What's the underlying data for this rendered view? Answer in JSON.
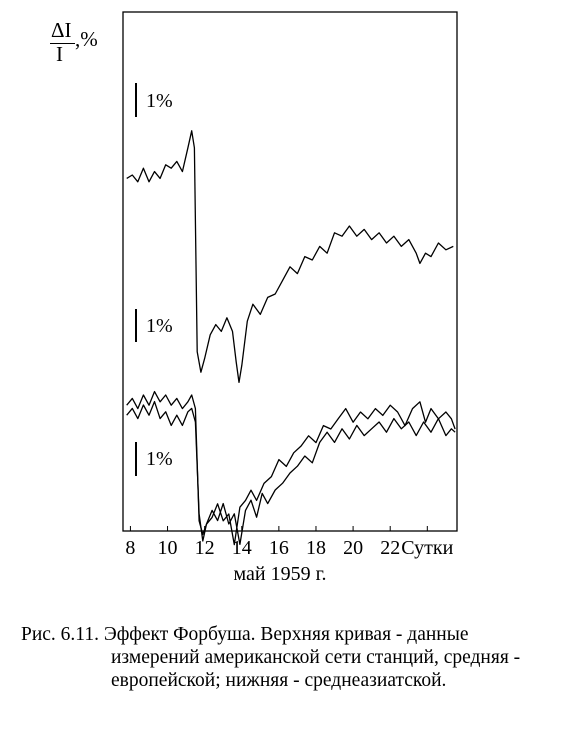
{
  "y_label": {
    "numerator": "ΔI",
    "denominator": "I",
    "unit": ",%"
  },
  "scale_bars": [
    {
      "label": "1%"
    },
    {
      "label": "1%"
    },
    {
      "label": "1%"
    }
  ],
  "x_axis_title": "май 1959 г.",
  "caption": {
    "line1": "Рис. 6.11. Эффект Форбуша. Верхняя кривая - данные",
    "line2": "измерений американской сети станций, средняя -",
    "line3": "европейской; нижняя - среднеазиатской."
  },
  "chart_data": {
    "type": "line",
    "x_unit": "сутки (май 1959 г.)",
    "xlim": [
      7.6,
      25.6
    ],
    "x_ticks": [
      {
        "value": 8,
        "label": "8"
      },
      {
        "value": 10,
        "label": "10"
      },
      {
        "value": 12,
        "label": "12"
      },
      {
        "value": 14,
        "label": "14"
      },
      {
        "value": 16,
        "label": "16"
      },
      {
        "value": 18,
        "label": "18"
      },
      {
        "value": 20,
        "label": "20"
      },
      {
        "value": 22,
        "label": "22"
      },
      {
        "value": 24,
        "label": "Сутки"
      }
    ],
    "series": [
      {
        "points": [
          [
            7.8,
            2.4
          ],
          [
            8.1,
            2.5
          ],
          [
            8.4,
            2.3
          ],
          [
            8.7,
            2.7
          ],
          [
            9.0,
            2.3
          ],
          [
            9.3,
            2.6
          ],
          [
            9.6,
            2.4
          ],
          [
            9.9,
            2.8
          ],
          [
            10.2,
            2.7
          ],
          [
            10.5,
            2.9
          ],
          [
            10.8,
            2.6
          ],
          [
            11.1,
            3.3
          ],
          [
            11.3,
            3.8
          ],
          [
            11.45,
            3.3
          ],
          [
            11.6,
            -2.7
          ],
          [
            11.8,
            -3.3
          ],
          [
            12.0,
            -2.9
          ],
          [
            12.3,
            -2.2
          ],
          [
            12.6,
            -1.9
          ],
          [
            12.9,
            -2.1
          ],
          [
            13.2,
            -1.7
          ],
          [
            13.5,
            -2.1
          ],
          [
            13.7,
            -3.0
          ],
          [
            13.85,
            -3.6
          ],
          [
            14.0,
            -3.1
          ],
          [
            14.3,
            -1.8
          ],
          [
            14.6,
            -1.3
          ],
          [
            15.0,
            -1.6
          ],
          [
            15.4,
            -1.1
          ],
          [
            15.8,
            -1.0
          ],
          [
            16.2,
            -0.6
          ],
          [
            16.6,
            -0.2
          ],
          [
            17.0,
            -0.4
          ],
          [
            17.4,
            0.1
          ],
          [
            17.8,
            0.0
          ],
          [
            18.2,
            0.4
          ],
          [
            18.6,
            0.2
          ],
          [
            19.0,
            0.8
          ],
          [
            19.4,
            0.7
          ],
          [
            19.8,
            1.0
          ],
          [
            20.2,
            0.7
          ],
          [
            20.6,
            0.9
          ],
          [
            21.0,
            0.6
          ],
          [
            21.4,
            0.8
          ],
          [
            21.8,
            0.5
          ],
          [
            22.2,
            0.7
          ],
          [
            22.6,
            0.4
          ],
          [
            23.0,
            0.6
          ],
          [
            23.4,
            0.2
          ],
          [
            23.6,
            -0.1
          ],
          [
            23.9,
            0.2
          ],
          [
            24.2,
            0.1
          ],
          [
            24.6,
            0.5
          ],
          [
            25.0,
            0.3
          ],
          [
            25.4,
            0.4
          ]
        ]
      },
      {
        "points": [
          [
            7.8,
            0.2
          ],
          [
            8.1,
            0.4
          ],
          [
            8.4,
            0.1
          ],
          [
            8.7,
            0.5
          ],
          [
            9.0,
            0.2
          ],
          [
            9.3,
            0.6
          ],
          [
            9.6,
            0.3
          ],
          [
            9.9,
            0.5
          ],
          [
            10.2,
            0.2
          ],
          [
            10.5,
            0.4
          ],
          [
            10.8,
            0.1
          ],
          [
            11.1,
            0.3
          ],
          [
            11.3,
            0.5
          ],
          [
            11.5,
            0.1
          ],
          [
            11.7,
            -3.2
          ],
          [
            11.9,
            -3.6
          ],
          [
            12.1,
            -3.3
          ],
          [
            12.4,
            -3.1
          ],
          [
            12.7,
            -2.7
          ],
          [
            13.0,
            -3.2
          ],
          [
            13.3,
            -3.0
          ],
          [
            13.6,
            -3.9
          ],
          [
            13.9,
            -2.8
          ],
          [
            14.2,
            -2.6
          ],
          [
            14.5,
            -2.3
          ],
          [
            14.8,
            -2.6
          ],
          [
            15.2,
            -2.1
          ],
          [
            15.6,
            -1.9
          ],
          [
            16.0,
            -1.4
          ],
          [
            16.4,
            -1.6
          ],
          [
            16.8,
            -1.2
          ],
          [
            17.2,
            -1.0
          ],
          [
            17.6,
            -0.7
          ],
          [
            18.0,
            -0.9
          ],
          [
            18.4,
            -0.4
          ],
          [
            18.8,
            -0.5
          ],
          [
            19.2,
            -0.2
          ],
          [
            19.6,
            0.1
          ],
          [
            20.0,
            -0.3
          ],
          [
            20.4,
            0.0
          ],
          [
            20.8,
            -0.2
          ],
          [
            21.2,
            0.1
          ],
          [
            21.6,
            -0.1
          ],
          [
            22.0,
            0.2
          ],
          [
            22.4,
            0.0
          ],
          [
            22.8,
            -0.4
          ],
          [
            23.2,
            0.1
          ],
          [
            23.6,
            0.3
          ],
          [
            23.9,
            -0.3
          ],
          [
            24.2,
            0.1
          ],
          [
            24.6,
            -0.2
          ],
          [
            25.0,
            0.0
          ],
          [
            25.3,
            -0.2
          ],
          [
            25.5,
            -0.5
          ]
        ]
      },
      {
        "points": [
          [
            7.8,
            0.2
          ],
          [
            8.1,
            0.4
          ],
          [
            8.4,
            0.1
          ],
          [
            8.7,
            0.5
          ],
          [
            9.0,
            0.2
          ],
          [
            9.3,
            0.6
          ],
          [
            9.6,
            0.1
          ],
          [
            9.9,
            0.3
          ],
          [
            10.2,
            -0.1
          ],
          [
            10.5,
            0.2
          ],
          [
            10.8,
            -0.1
          ],
          [
            11.1,
            0.3
          ],
          [
            11.3,
            0.4
          ],
          [
            11.5,
            0.0
          ],
          [
            11.7,
            -2.7
          ],
          [
            11.9,
            -3.5
          ],
          [
            12.1,
            -3.0
          ],
          [
            12.4,
            -2.6
          ],
          [
            12.7,
            -2.9
          ],
          [
            13.0,
            -2.4
          ],
          [
            13.3,
            -3.0
          ],
          [
            13.6,
            -2.7
          ],
          [
            13.9,
            -3.6
          ],
          [
            14.2,
            -2.6
          ],
          [
            14.5,
            -2.3
          ],
          [
            14.8,
            -2.8
          ],
          [
            15.1,
            -2.1
          ],
          [
            15.4,
            -2.4
          ],
          [
            15.8,
            -2.0
          ],
          [
            16.2,
            -1.8
          ],
          [
            16.6,
            -1.5
          ],
          [
            17.0,
            -1.3
          ],
          [
            17.4,
            -1.0
          ],
          [
            17.8,
            -1.2
          ],
          [
            18.2,
            -0.6
          ],
          [
            18.6,
            -0.3
          ],
          [
            19.0,
            -0.6
          ],
          [
            19.4,
            -0.2
          ],
          [
            19.8,
            -0.5
          ],
          [
            20.2,
            -0.1
          ],
          [
            20.6,
            -0.4
          ],
          [
            21.0,
            -0.2
          ],
          [
            21.4,
            0.0
          ],
          [
            21.8,
            -0.3
          ],
          [
            22.2,
            0.1
          ],
          [
            22.6,
            -0.2
          ],
          [
            23.0,
            0.0
          ],
          [
            23.4,
            -0.4
          ],
          [
            23.8,
            0.0
          ],
          [
            24.2,
            -0.3
          ],
          [
            24.6,
            0.1
          ],
          [
            25.0,
            -0.4
          ],
          [
            25.3,
            -0.2
          ],
          [
            25.5,
            -0.3
          ]
        ]
      }
    ]
  }
}
